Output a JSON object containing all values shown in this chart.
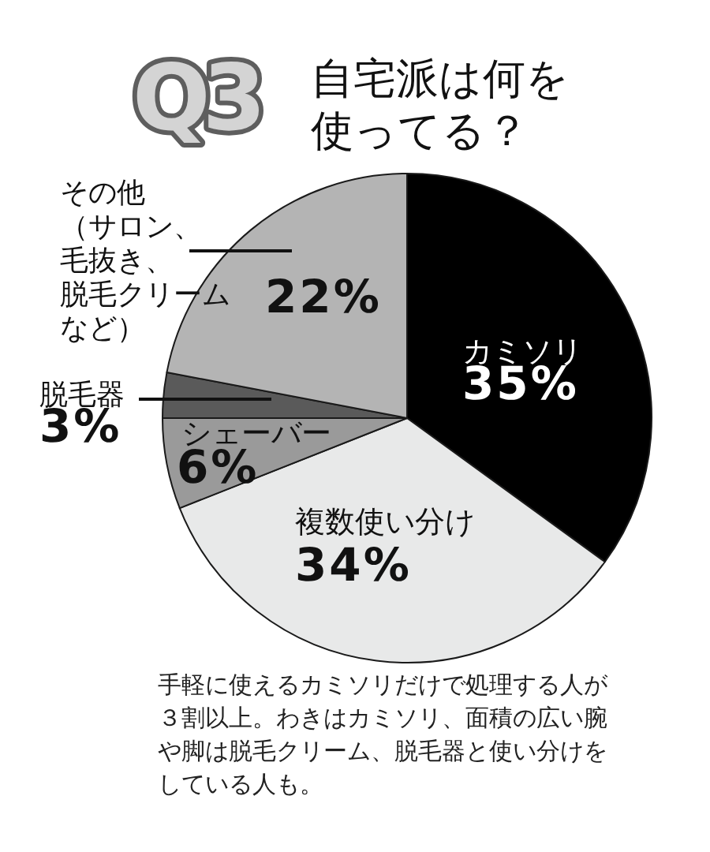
{
  "chart_data": {
    "type": "pie",
    "title": "自宅派は何を使ってる？",
    "categories": [
      "カミソリ",
      "複数使い分け",
      "シェーバー",
      "脱毛器",
      "その他（サロン、毛抜き、脱毛クリームなど）"
    ],
    "values": [
      35,
      34,
      6,
      3,
      22
    ],
    "value_labels": [
      "35%",
      "34%",
      "6%",
      "3%",
      "22%"
    ],
    "colors": [
      "#000000",
      "#e8e9e9",
      "#9a9a9a",
      "#5a5a5a",
      "#b4b4b4"
    ],
    "annotations": [
      "Q3",
      "手軽に使えるカミソリだけで処理する人が３割以上。わきはカミソリ、面積の広い腕や脚は脱毛クリーム、脱毛器と使い分けをしている人も。"
    ]
  }
}
